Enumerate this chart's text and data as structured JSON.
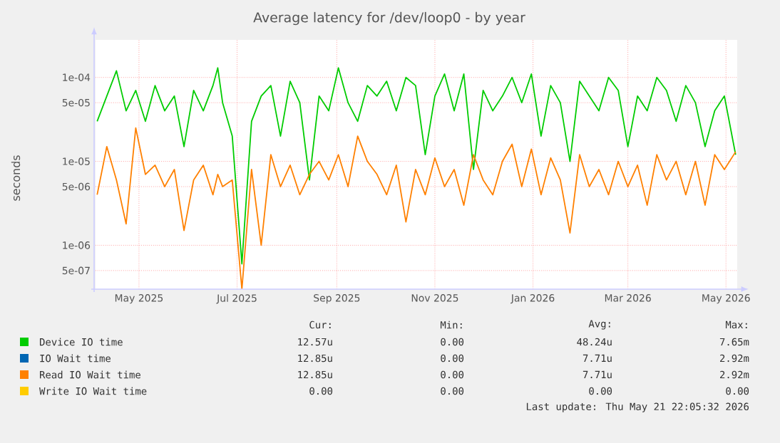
{
  "chart_data": {
    "type": "line",
    "title": "Average latency for /dev/loop0 - by year",
    "ylabel": "seconds",
    "log": true,
    "grid": true,
    "legend": "bottom",
    "xlim": [
      "2025-04-18",
      "2026-05-22"
    ],
    "xticks": [
      {
        "value": "2025-05-15",
        "label": "May 2025"
      },
      {
        "value": "2025-07-15",
        "label": "Jul 2025"
      },
      {
        "value": "2025-09-15",
        "label": "Sep 2025"
      },
      {
        "value": "2025-11-15",
        "label": "Nov 2025"
      },
      {
        "value": "2026-01-15",
        "label": "Jan 2026"
      },
      {
        "value": "2026-03-15",
        "label": "Mar 2026"
      },
      {
        "value": "2026-05-15",
        "label": "May 2026"
      }
    ],
    "ylim": [
      3e-07,
      0.00028
    ],
    "yticks": [
      {
        "value": 5e-07,
        "label": "5e-07"
      },
      {
        "value": 1e-06,
        "label": "1e-06"
      },
      {
        "value": 5e-06,
        "label": "5e-06"
      },
      {
        "value": 1e-05,
        "label": "1e-05"
      },
      {
        "value": 5e-05,
        "label": "5e-05"
      },
      {
        "value": 0.0001,
        "label": "1e-04"
      }
    ],
    "x": [
      "2025-04-19",
      "2025-04-25",
      "2025-05-01",
      "2025-05-07",
      "2025-05-13",
      "2025-05-19",
      "2025-05-25",
      "2025-05-31",
      "2025-06-06",
      "2025-06-12",
      "2025-06-18",
      "2025-06-24",
      "2025-06-30",
      "2025-07-03",
      "2025-07-06",
      "2025-07-12",
      "2025-07-18",
      "2025-07-24",
      "2025-07-30",
      "2025-08-05",
      "2025-08-11",
      "2025-08-17",
      "2025-08-23",
      "2025-08-29",
      "2025-09-04",
      "2025-09-10",
      "2025-09-16",
      "2025-09-22",
      "2025-09-28",
      "2025-10-04",
      "2025-10-10",
      "2025-10-16",
      "2025-10-22",
      "2025-10-28",
      "2025-11-03",
      "2025-11-09",
      "2025-11-15",
      "2025-11-21",
      "2025-11-27",
      "2025-12-03",
      "2025-12-09",
      "2025-12-15",
      "2025-12-21",
      "2025-12-27",
      "2026-01-02",
      "2026-01-08",
      "2026-01-14",
      "2026-01-20",
      "2026-01-26",
      "2026-02-01",
      "2026-02-07",
      "2026-02-13",
      "2026-02-19",
      "2026-02-25",
      "2026-03-03",
      "2026-03-09",
      "2026-03-15",
      "2026-03-21",
      "2026-03-27",
      "2026-04-02",
      "2026-04-08",
      "2026-04-14",
      "2026-04-20",
      "2026-04-26",
      "2026-05-02",
      "2026-05-08",
      "2026-05-14",
      "2026-05-21"
    ],
    "series": [
      {
        "name": "Device IO time",
        "color": "#00cc00",
        "values": [
          3e-05,
          6e-05,
          0.00012,
          4e-05,
          7e-05,
          3e-05,
          8e-05,
          4e-05,
          6e-05,
          1.5e-05,
          7e-05,
          4e-05,
          8e-05,
          0.00013,
          5e-05,
          2e-05,
          6e-07,
          3e-05,
          6e-05,
          8e-05,
          2e-05,
          9e-05,
          5e-05,
          6e-06,
          6e-05,
          4e-05,
          0.00013,
          5e-05,
          3e-05,
          8e-05,
          6e-05,
          9e-05,
          4e-05,
          0.0001,
          8e-05,
          1.2e-05,
          6e-05,
          0.00011,
          4e-05,
          0.00011,
          8e-06,
          7e-05,
          4e-05,
          6e-05,
          0.0001,
          5e-05,
          0.00011,
          2e-05,
          8e-05,
          5e-05,
          1e-05,
          9e-05,
          6e-05,
          4e-05,
          0.0001,
          7e-05,
          1.5e-05,
          6e-05,
          4e-05,
          0.0001,
          7e-05,
          3e-05,
          8e-05,
          5e-05,
          1.5e-05,
          4e-05,
          6e-05,
          1.2e-05
        ]
      },
      {
        "name": "IO Wait time",
        "color": "#0066b3",
        "values": [
          null,
          null,
          null,
          null,
          null,
          null,
          null,
          null,
          null,
          null,
          null,
          null,
          null,
          null,
          null,
          null,
          null,
          null,
          null,
          null,
          null,
          null,
          null,
          null,
          null,
          null,
          null,
          null,
          null,
          null,
          null,
          null,
          null,
          null,
          null,
          null,
          null,
          null,
          null,
          null,
          null,
          null,
          null,
          null,
          null,
          null,
          null,
          null,
          null,
          null,
          null,
          null,
          null,
          null,
          null,
          null,
          null,
          null,
          null,
          null,
          null,
          null,
          null,
          null,
          null,
          null,
          null,
          null
        ]
      },
      {
        "name": "Read IO Wait time",
        "color": "#ff8000",
        "values": [
          4e-06,
          1.5e-05,
          6e-06,
          1.8e-06,
          2.5e-05,
          7e-06,
          9e-06,
          5e-06,
          8e-06,
          1.5e-06,
          6e-06,
          9e-06,
          4e-06,
          7e-06,
          5e-06,
          6e-06,
          3e-07,
          8e-06,
          1e-06,
          1.2e-05,
          5e-06,
          9e-06,
          4e-06,
          7e-06,
          1e-05,
          6e-06,
          1.2e-05,
          5e-06,
          2e-05,
          1e-05,
          7e-06,
          4e-06,
          9e-06,
          1.9e-06,
          8e-06,
          4e-06,
          1.1e-05,
          5e-06,
          8e-06,
          3e-06,
          1.2e-05,
          6e-06,
          4e-06,
          1e-05,
          1.6e-05,
          5e-06,
          1.4e-05,
          4e-06,
          1.1e-05,
          6e-06,
          1.4e-06,
          1.2e-05,
          5e-06,
          8e-06,
          4e-06,
          1e-05,
          5e-06,
          9e-06,
          3e-06,
          1.2e-05,
          6e-06,
          1e-05,
          4e-06,
          1e-05,
          3e-06,
          1.2e-05,
          8e-06,
          1.3e-05
        ]
      },
      {
        "name": "Write IO Wait time",
        "color": "#ffcc00",
        "values": [
          null,
          null,
          null,
          null,
          null,
          null,
          null,
          null,
          null,
          null,
          null,
          null,
          null,
          null,
          null,
          null,
          null,
          null,
          null,
          null,
          null,
          null,
          null,
          null,
          null,
          null,
          null,
          null,
          null,
          null,
          null,
          null,
          null,
          null,
          null,
          null,
          null,
          null,
          null,
          null,
          null,
          null,
          null,
          null,
          null,
          null,
          null,
          null,
          null,
          null,
          null,
          null,
          null,
          null,
          null,
          null,
          null,
          null,
          null,
          null,
          null,
          null,
          null,
          null,
          null,
          null,
          null,
          null
        ]
      }
    ],
    "annotations": [
      "Cur:",
      "Min:",
      "Avg:",
      "Max:",
      "12.57u",
      "0.00",
      "48.24u",
      "7.65m",
      "12.85u",
      "0.00",
      "7.71u",
      "2.92m",
      "12.85u",
      "0.00",
      "7.71u",
      "2.92m",
      "0.00",
      "0.00",
      "0.00",
      "0.00",
      "Last update: Thu May 21 22:05:32 2026"
    ]
  }
}
